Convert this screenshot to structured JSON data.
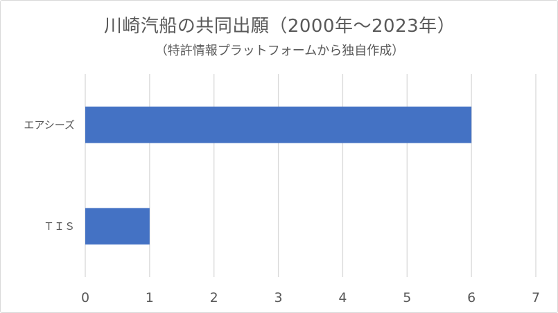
{
  "chart_data": {
    "type": "bar",
    "orientation": "horizontal",
    "title": "川崎汽船の共同出願（2000年～2023年）",
    "subtitle": "（特許情報プラットフォームから独自作成）",
    "categories": [
      "エアシーズ",
      "ＴＩＳ"
    ],
    "values": [
      6,
      1
    ],
    "xlim": [
      0,
      7
    ],
    "x_ticks": [
      "0",
      "1",
      "2",
      "3",
      "4",
      "5",
      "6",
      "7"
    ],
    "grid": true,
    "legend": "none",
    "bar_color": "#4472c4"
  }
}
